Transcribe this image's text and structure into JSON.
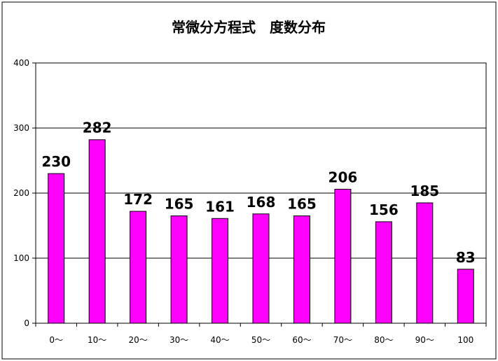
{
  "chart_data": {
    "type": "bar",
    "title": "常微分方程式　度数分布",
    "xlabel": "",
    "ylabel": "",
    "categories": [
      "0～",
      "10～",
      "20～",
      "30～",
      "40～",
      "50～",
      "60～",
      "70～",
      "80～",
      "90～",
      "100"
    ],
    "values": [
      230,
      282,
      172,
      165,
      161,
      168,
      165,
      206,
      156,
      185,
      83
    ],
    "ylim": [
      0,
      400
    ],
    "yticks": [
      0,
      100,
      200,
      300,
      400
    ],
    "grid": true,
    "legend": "none",
    "bar_color": "#ff00ff",
    "bar_border_color": "#000000",
    "data_labels": true
  }
}
